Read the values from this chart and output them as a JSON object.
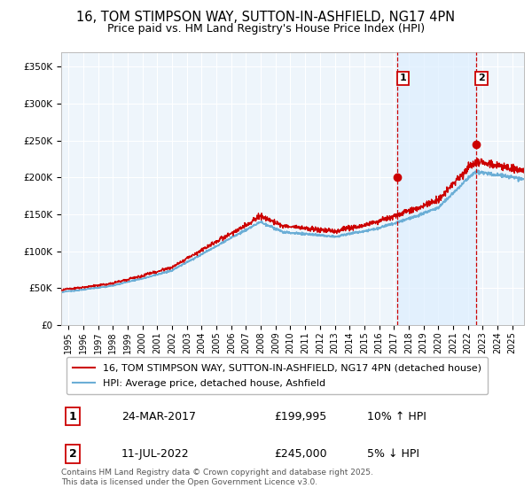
{
  "title": "16, TOM STIMPSON WAY, SUTTON-IN-ASHFIELD, NG17 4PN",
  "subtitle": "Price paid vs. HM Land Registry's House Price Index (HPI)",
  "ylabel_ticks": [
    "£0",
    "£50K",
    "£100K",
    "£150K",
    "£200K",
    "£250K",
    "£300K",
    "£350K"
  ],
  "ytick_values": [
    0,
    50000,
    100000,
    150000,
    200000,
    250000,
    300000,
    350000
  ],
  "ylim": [
    0,
    370000
  ],
  "xlim_start": 1994.5,
  "xlim_end": 2025.8,
  "hpi_color": "#6baed6",
  "hpi_fill_color": "#c6e2f5",
  "price_color": "#cc0000",
  "vline_color": "#cc0000",
  "shade_color": "#ddeeff",
  "marker_color": "#cc0000",
  "annotation_edge_color": "#cc0000",
  "sale1_year": 2017.23,
  "sale1_price": 199995,
  "sale2_year": 2022.54,
  "sale2_price": 245000,
  "annotation1_label": "1",
  "annotation2_label": "2",
  "legend_label1": "16, TOM STIMPSON WAY, SUTTON-IN-ASHFIELD, NG17 4PN (detached house)",
  "legend_label2": "HPI: Average price, detached house, Ashfield",
  "table_row1": [
    "1",
    "24-MAR-2017",
    "£199,995",
    "10% ↑ HPI"
  ],
  "table_row2": [
    "2",
    "11-JUL-2022",
    "£245,000",
    "5% ↓ HPI"
  ],
  "footer": "Contains HM Land Registry data © Crown copyright and database right 2025.\nThis data is licensed under the Open Government Licence v3.0.",
  "bg_color": "#ffffff",
  "plot_bg_color": "#eef5fb",
  "grid_color": "#ffffff",
  "title_fontsize": 10.5,
  "subtitle_fontsize": 9,
  "tick_fontsize": 7.5,
  "legend_fontsize": 8,
  "table_fontsize": 9,
  "footer_fontsize": 6.5
}
